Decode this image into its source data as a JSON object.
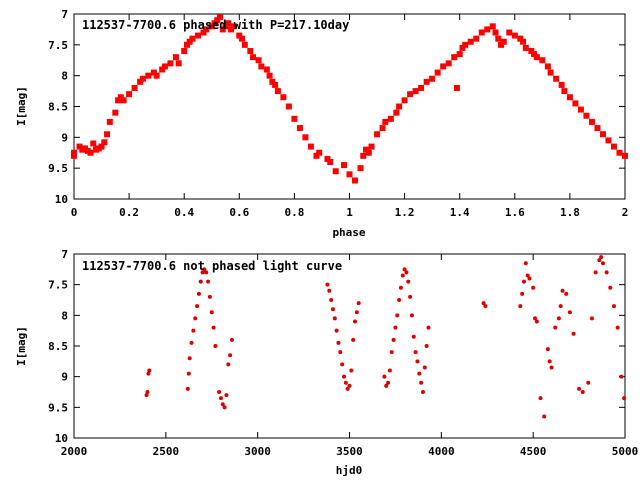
{
  "chart_data": [
    {
      "type": "scatter",
      "title": "112537-7700.6 phased with P=217.10day",
      "xlabel": "phase",
      "ylabel": "I[mag]",
      "xlim": [
        0,
        2
      ],
      "ylim": [
        10,
        7
      ],
      "y_inverted": true,
      "grid": false,
      "marker": "square",
      "color": "#ff0000",
      "x_ticks": [
        "0",
        "0.2",
        "0.4",
        "0.6",
        "0.8",
        "1",
        "1.2",
        "1.4",
        "1.6",
        "1.8",
        "2"
      ],
      "y_ticks": [
        "7",
        "7.5",
        "8",
        "8.5",
        "9",
        "9.5",
        "10"
      ],
      "points": [
        [
          0.0,
          9.25
        ],
        [
          0.0,
          9.3
        ],
        [
          0.02,
          9.15
        ],
        [
          0.03,
          9.2
        ],
        [
          0.04,
          9.18
        ],
        [
          0.05,
          9.22
        ],
        [
          0.06,
          9.25
        ],
        [
          0.07,
          9.1
        ],
        [
          0.08,
          9.2
        ],
        [
          0.09,
          9.18
        ],
        [
          0.1,
          9.15
        ],
        [
          0.11,
          9.08
        ],
        [
          0.12,
          8.95
        ],
        [
          0.13,
          8.75
        ],
        [
          0.15,
          8.6
        ],
        [
          0.16,
          8.4
        ],
        [
          0.17,
          8.35
        ],
        [
          0.18,
          8.4
        ],
        [
          0.2,
          8.3
        ],
        [
          0.22,
          8.2
        ],
        [
          0.24,
          8.1
        ],
        [
          0.25,
          8.05
        ],
        [
          0.27,
          8.0
        ],
        [
          0.29,
          7.95
        ],
        [
          0.3,
          8.0
        ],
        [
          0.32,
          7.9
        ],
        [
          0.33,
          7.85
        ],
        [
          0.35,
          7.8
        ],
        [
          0.37,
          7.7
        ],
        [
          0.38,
          7.8
        ],
        [
          0.4,
          7.6
        ],
        [
          0.41,
          7.5
        ],
        [
          0.42,
          7.45
        ],
        [
          0.43,
          7.4
        ],
        [
          0.45,
          7.35
        ],
        [
          0.47,
          7.3
        ],
        [
          0.48,
          7.25
        ],
        [
          0.5,
          7.2
        ],
        [
          0.51,
          7.15
        ],
        [
          0.52,
          7.1
        ],
        [
          0.53,
          7.05
        ],
        [
          0.54,
          7.25
        ],
        [
          0.55,
          7.2
        ],
        [
          0.56,
          7.15
        ],
        [
          0.57,
          7.25
        ],
        [
          0.58,
          7.2
        ],
        [
          0.6,
          7.35
        ],
        [
          0.61,
          7.4
        ],
        [
          0.62,
          7.5
        ],
        [
          0.64,
          7.6
        ],
        [
          0.65,
          7.7
        ],
        [
          0.67,
          7.75
        ],
        [
          0.68,
          7.85
        ],
        [
          0.7,
          7.9
        ],
        [
          0.71,
          8.0
        ],
        [
          0.72,
          8.1
        ],
        [
          0.73,
          8.15
        ],
        [
          0.74,
          8.25
        ],
        [
          0.76,
          8.35
        ],
        [
          0.78,
          8.5
        ],
        [
          0.8,
          8.7
        ],
        [
          0.82,
          8.85
        ],
        [
          0.84,
          9.0
        ],
        [
          0.86,
          9.15
        ],
        [
          0.88,
          9.3
        ],
        [
          0.89,
          9.25
        ],
        [
          0.92,
          9.35
        ],
        [
          0.93,
          9.4
        ],
        [
          0.95,
          9.55
        ],
        [
          0.98,
          9.45
        ],
        [
          1.0,
          9.6
        ],
        [
          1.02,
          9.7
        ],
        [
          1.04,
          9.5
        ],
        [
          1.05,
          9.3
        ],
        [
          1.06,
          9.2
        ],
        [
          1.07,
          9.25
        ],
        [
          1.08,
          9.15
        ],
        [
          1.1,
          8.95
        ],
        [
          1.12,
          8.85
        ],
        [
          1.13,
          8.75
        ],
        [
          1.15,
          8.7
        ],
        [
          1.17,
          8.6
        ],
        [
          1.18,
          8.5
        ],
        [
          1.2,
          8.4
        ],
        [
          1.22,
          8.3
        ],
        [
          1.24,
          8.25
        ],
        [
          1.26,
          8.2
        ],
        [
          1.28,
          8.1
        ],
        [
          1.3,
          8.05
        ],
        [
          1.32,
          7.95
        ],
        [
          1.34,
          7.85
        ],
        [
          1.36,
          7.8
        ],
        [
          1.38,
          7.7
        ],
        [
          1.39,
          8.2
        ],
        [
          1.4,
          7.65
        ],
        [
          1.41,
          7.55
        ],
        [
          1.42,
          7.5
        ],
        [
          1.44,
          7.45
        ],
        [
          1.46,
          7.4
        ],
        [
          1.48,
          7.3
        ],
        [
          1.5,
          7.25
        ],
        [
          1.52,
          7.2
        ],
        [
          1.53,
          7.3
        ],
        [
          1.54,
          7.4
        ],
        [
          1.55,
          7.5
        ],
        [
          1.56,
          7.45
        ],
        [
          1.58,
          7.3
        ],
        [
          1.6,
          7.35
        ],
        [
          1.62,
          7.4
        ],
        [
          1.63,
          7.45
        ],
        [
          1.64,
          7.55
        ],
        [
          1.66,
          7.6
        ],
        [
          1.67,
          7.65
        ],
        [
          1.68,
          7.7
        ],
        [
          1.7,
          7.75
        ],
        [
          1.72,
          7.85
        ],
        [
          1.73,
          7.95
        ],
        [
          1.75,
          8.05
        ],
        [
          1.77,
          8.15
        ],
        [
          1.78,
          8.25
        ],
        [
          1.8,
          8.35
        ],
        [
          1.82,
          8.45
        ],
        [
          1.84,
          8.55
        ],
        [
          1.86,
          8.65
        ],
        [
          1.88,
          8.75
        ],
        [
          1.9,
          8.85
        ],
        [
          1.92,
          8.95
        ],
        [
          1.94,
          9.05
        ],
        [
          1.96,
          9.15
        ],
        [
          1.98,
          9.25
        ],
        [
          2.0,
          9.3
        ]
      ]
    },
    {
      "type": "scatter",
      "title": "112537-7700.6 not phased light curve",
      "xlabel": "hjd0",
      "ylabel": "I[mag]",
      "xlim": [
        2000,
        5000
      ],
      "ylim": [
        10,
        7
      ],
      "y_inverted": true,
      "grid": false,
      "marker": "dot",
      "color": "#dd0000",
      "x_ticks": [
        "2000",
        "2500",
        "3000",
        "3500",
        "4000",
        "4500",
        "5000"
      ],
      "y_ticks": [
        "7",
        "7.5",
        "8",
        "8.5",
        "9",
        "9.5",
        "10"
      ],
      "points": [
        [
          2395,
          9.3
        ],
        [
          2400,
          9.25
        ],
        [
          2405,
          8.95
        ],
        [
          2410,
          8.9
        ],
        [
          2620,
          9.2
        ],
        [
          2625,
          8.95
        ],
        [
          2630,
          8.7
        ],
        [
          2640,
          8.45
        ],
        [
          2650,
          8.25
        ],
        [
          2660,
          8.05
        ],
        [
          2670,
          7.85
        ],
        [
          2680,
          7.65
        ],
        [
          2690,
          7.45
        ],
        [
          2700,
          7.3
        ],
        [
          2710,
          7.25
        ],
        [
          2720,
          7.3
        ],
        [
          2730,
          7.45
        ],
        [
          2740,
          7.7
        ],
        [
          2750,
          7.95
        ],
        [
          2760,
          8.2
        ],
        [
          2770,
          8.5
        ],
        [
          2790,
          9.25
        ],
        [
          2800,
          9.35
        ],
        [
          2810,
          9.45
        ],
        [
          2820,
          9.5
        ],
        [
          2830,
          9.3
        ],
        [
          2840,
          8.8
        ],
        [
          2850,
          8.65
        ],
        [
          2860,
          8.4
        ],
        [
          3380,
          7.5
        ],
        [
          3390,
          7.6
        ],
        [
          3400,
          7.75
        ],
        [
          3410,
          7.9
        ],
        [
          3420,
          8.05
        ],
        [
          3430,
          8.25
        ],
        [
          3440,
          8.45
        ],
        [
          3450,
          8.6
        ],
        [
          3460,
          8.8
        ],
        [
          3470,
          9.0
        ],
        [
          3480,
          9.1
        ],
        [
          3490,
          9.2
        ],
        [
          3500,
          9.15
        ],
        [
          3510,
          8.9
        ],
        [
          3520,
          8.4
        ],
        [
          3530,
          8.1
        ],
        [
          3540,
          7.95
        ],
        [
          3550,
          7.8
        ],
        [
          3690,
          9.0
        ],
        [
          3700,
          9.15
        ],
        [
          3710,
          9.1
        ],
        [
          3720,
          8.9
        ],
        [
          3730,
          8.6
        ],
        [
          3740,
          8.4
        ],
        [
          3750,
          8.2
        ],
        [
          3760,
          8.0
        ],
        [
          3770,
          7.75
        ],
        [
          3780,
          7.55
        ],
        [
          3790,
          7.35
        ],
        [
          3800,
          7.25
        ],
        [
          3810,
          7.3
        ],
        [
          3820,
          7.45
        ],
        [
          3830,
          7.7
        ],
        [
          3840,
          8.0
        ],
        [
          3850,
          8.35
        ],
        [
          3860,
          8.6
        ],
        [
          3870,
          8.75
        ],
        [
          3880,
          8.95
        ],
        [
          3890,
          9.1
        ],
        [
          3900,
          9.25
        ],
        [
          3910,
          8.85
        ],
        [
          3920,
          8.5
        ],
        [
          3930,
          8.2
        ],
        [
          4230,
          7.8
        ],
        [
          4240,
          7.85
        ],
        [
          4430,
          7.85
        ],
        [
          4440,
          7.65
        ],
        [
          4450,
          7.45
        ],
        [
          4460,
          7.15
        ],
        [
          4470,
          7.35
        ],
        [
          4480,
          7.4
        ],
        [
          4500,
          7.55
        ],
        [
          4510,
          8.05
        ],
        [
          4520,
          8.1
        ],
        [
          4540,
          9.35
        ],
        [
          4560,
          9.65
        ],
        [
          4580,
          8.55
        ],
        [
          4590,
          8.75
        ],
        [
          4600,
          8.85
        ],
        [
          4620,
          8.2
        ],
        [
          4640,
          8.05
        ],
        [
          4650,
          7.85
        ],
        [
          4660,
          7.6
        ],
        [
          4680,
          7.65
        ],
        [
          4700,
          7.95
        ],
        [
          4720,
          8.3
        ],
        [
          4750,
          9.2
        ],
        [
          4770,
          9.25
        ],
        [
          4800,
          9.1
        ],
        [
          4820,
          8.05
        ],
        [
          4840,
          7.3
        ],
        [
          4860,
          7.1
        ],
        [
          4870,
          7.05
        ],
        [
          4880,
          7.15
        ],
        [
          4900,
          7.3
        ],
        [
          4920,
          7.55
        ],
        [
          4940,
          7.85
        ],
        [
          4960,
          8.2
        ],
        [
          4980,
          9.0
        ],
        [
          4995,
          9.35
        ]
      ]
    }
  ]
}
